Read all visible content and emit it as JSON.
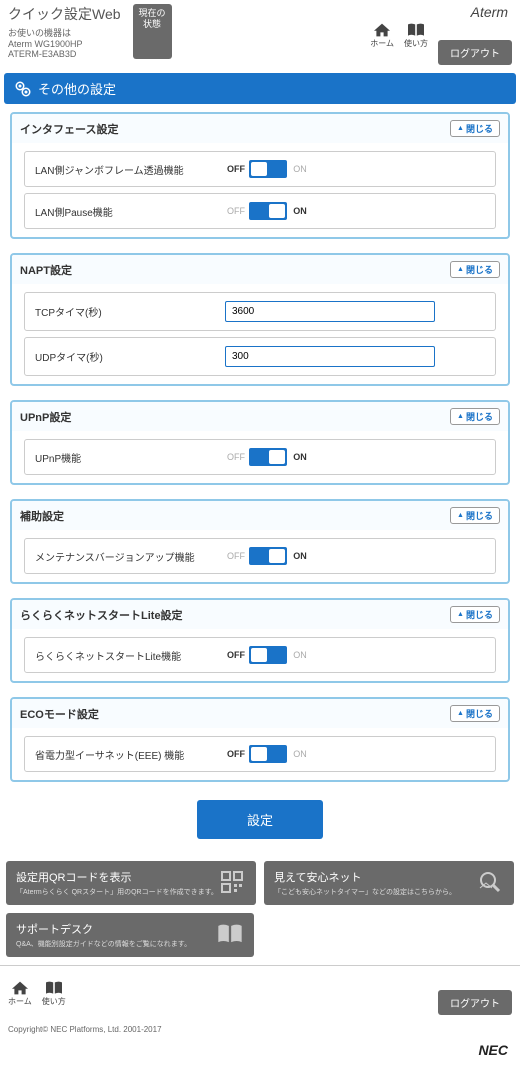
{
  "header": {
    "title": "クイック設定Web",
    "device_label": "お使いの機器は",
    "device_model": "Aterm WG1900HP",
    "device_id": "ATERM-E3AB3D",
    "status_btn": "現在の\n状態",
    "brand": "Aterm",
    "nav_home": "ホーム",
    "nav_help": "使い方",
    "logout": "ログアウト"
  },
  "page_title": "その他の設定",
  "close_label": "閉じる",
  "panels": [
    {
      "title": "インタフェース設定",
      "rows": [
        {
          "label": "LAN側ジャンボフレーム透過機能",
          "type": "toggle",
          "value": "off"
        },
        {
          "label": "LAN側Pause機能",
          "type": "toggle",
          "value": "on"
        }
      ]
    },
    {
      "title": "NAPT設定",
      "rows": [
        {
          "label": "TCPタイマ(秒)",
          "type": "text",
          "value": "3600"
        },
        {
          "label": "UDPタイマ(秒)",
          "type": "text",
          "value": "300"
        }
      ]
    },
    {
      "title": "UPnP設定",
      "rows": [
        {
          "label": "UPnP機能",
          "type": "toggle",
          "value": "on"
        }
      ]
    },
    {
      "title": "補助設定",
      "rows": [
        {
          "label": "メンテナンスバージョンアップ機能",
          "type": "toggle",
          "value": "on"
        }
      ]
    },
    {
      "title": "らくらくネットスタートLite設定",
      "rows": [
        {
          "label": "らくらくネットスタートLite機能",
          "type": "toggle",
          "value": "off"
        }
      ]
    },
    {
      "title": "ECOモード設定",
      "rows": [
        {
          "label": "省電力型イーサネット(EEE) 機能",
          "type": "toggle",
          "value": "off"
        }
      ]
    }
  ],
  "toggle_labels": {
    "off": "OFF",
    "on": "ON"
  },
  "submit": "設定",
  "cards": {
    "qr": {
      "title": "設定用QRコードを表示",
      "desc": "「Atermらくらく QRスタート」用のQRコードを作成できます。"
    },
    "safety": {
      "title": "見えて安心ネット",
      "desc": "「こども安心ネットタイマー」などの設定はこちらから。"
    },
    "support": {
      "title": "サポートデスク",
      "desc": "Q&A、機能別設定ガイドなどの情報をご覧になれます。"
    }
  },
  "footer": {
    "copyright": "Copyright© NEC Platforms, Ltd. 2001-2017",
    "vendor": "NEC"
  },
  "colors": {
    "primary": "#1a73c8",
    "panel_border": "#8fc8e8",
    "dark_btn": "#6a6a6a"
  }
}
